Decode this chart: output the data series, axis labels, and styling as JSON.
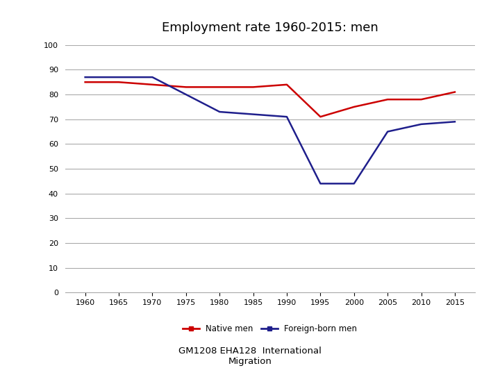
{
  "title": "Employment rate 1960-2015: men",
  "subtitle": "GM1208 EHA128  International\nMigration",
  "years": [
    1960,
    1965,
    1970,
    1975,
    1980,
    1985,
    1990,
    1995,
    2000,
    2005,
    2010,
    2015
  ],
  "native_men": [
    85,
    85,
    84,
    83,
    83,
    83,
    84,
    71,
    75,
    78,
    78,
    81
  ],
  "foreign_born_men": [
    87,
    87,
    87,
    80,
    73,
    72,
    71,
    44,
    44,
    65,
    68,
    69
  ],
  "native_color": "#CC0000",
  "foreign_color": "#1F1F8C",
  "ylim": [
    0,
    100
  ],
  "yticks": [
    0,
    10,
    20,
    30,
    40,
    50,
    60,
    70,
    80,
    90,
    100
  ],
  "legend_native": "Native men",
  "legend_foreign": "Foreign-born men",
  "bg_color": "#ffffff",
  "grid_color": "#aaaaaa",
  "linewidth": 1.8
}
